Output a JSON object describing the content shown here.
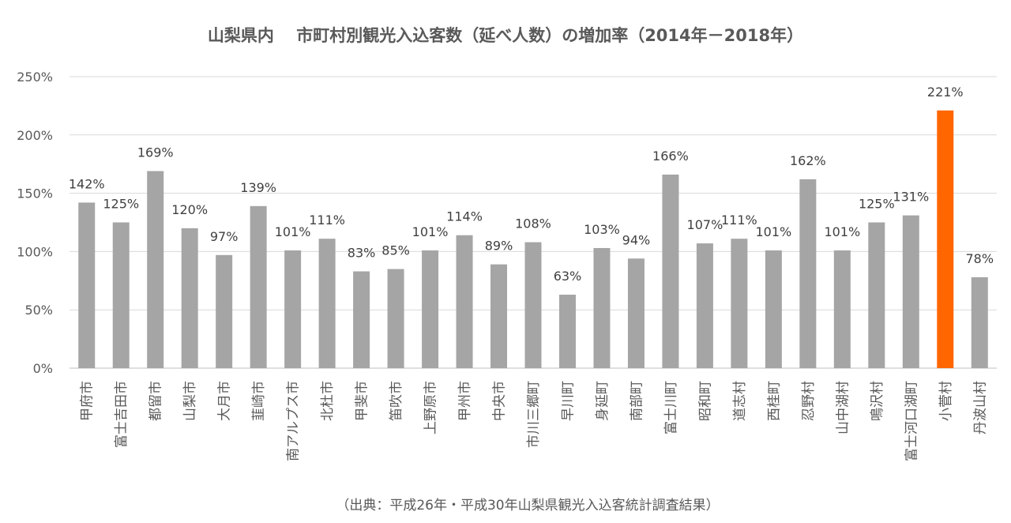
{
  "chart_data": {
    "type": "bar",
    "title": "山梨県内　 市町村別観光入込客数（延べ人数）の増加率（2014年－2018年）",
    "ylim": [
      0,
      250
    ],
    "yticks": [
      0,
      50,
      100,
      150,
      200,
      250
    ],
    "ytick_suffix": "%",
    "grid": true,
    "categories": [
      "甲府市",
      "富士吉田市",
      "都留市",
      "山梨市",
      "大月市",
      "韮崎市",
      "南アルプス市",
      "北杜市",
      "甲斐市",
      "笛吹市",
      "上野原市",
      "甲州市",
      "中央市",
      "市川三郷町",
      "早川町",
      "身延町",
      "南部町",
      "富士川町",
      "昭和町",
      "道志村",
      "西桂町",
      "忍野村",
      "山中湖村",
      "鳴沢村",
      "富士河口湖町",
      "小菅村",
      "丹波山村"
    ],
    "values": [
      142,
      125,
      169,
      120,
      97,
      139,
      101,
      111,
      83,
      85,
      101,
      114,
      89,
      108,
      63,
      103,
      94,
      166,
      107,
      111,
      101,
      162,
      101,
      125,
      131,
      221,
      78
    ],
    "data_labels": [
      "142%",
      "125%",
      "169%",
      "120%",
      "97%",
      "139%",
      "101%",
      "111%",
      "83%",
      "85%",
      "101%",
      "114%",
      "89%",
      "108%",
      "63%",
      "103%",
      "94%",
      "166%",
      "107%",
      "111%",
      "101%",
      "162%",
      "101%",
      "125%",
      "131%",
      "221%",
      "78%"
    ],
    "highlight_index": 25,
    "colors": {
      "bar": "#a5a5a5",
      "highlight": "#ff6600"
    },
    "source": "（出典：平成26年・平成30年山梨県観光入込客統計調査結果）"
  }
}
